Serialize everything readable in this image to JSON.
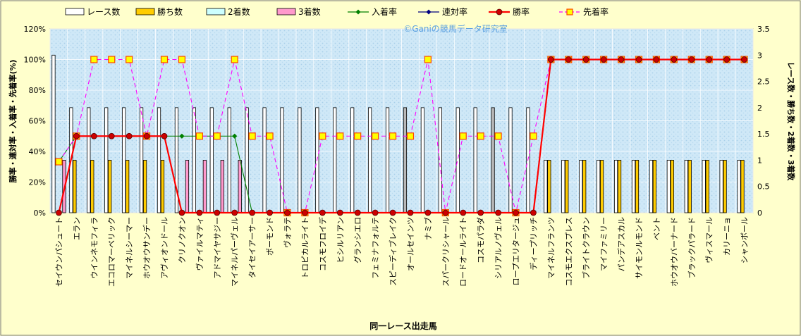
{
  "chart_data": {
    "type": "bar",
    "watermark": "©Ganiの競馬データ研究室",
    "xlabel": "同一レース出走馬",
    "ylabel_left": "勝率・連対率・入着率・先着率(%)",
    "ylabel_right": "レース数・勝ち数・2着数・3着数",
    "y_left_ticks": [
      "0%",
      "20%",
      "40%",
      "60%",
      "80%",
      "100%",
      "120%"
    ],
    "y_right_ticks": [
      "0",
      "0.5",
      "1",
      "1.5",
      "2",
      "2.5",
      "3",
      "3.5"
    ],
    "ylim_left": [
      0,
      120
    ],
    "ylim_right": [
      0,
      3.5
    ],
    "grid": true,
    "legend_position": "top",
    "categories": [
      "セイウンパシュート",
      "エラン",
      "ウインネモフィラ",
      "エコロマーベリック",
      "マイネルシーマー",
      "ホウオウサンデー",
      "アヴィオンドール",
      "クリノクオン",
      "ヴァイルマティ",
      "アドマイヤサジー",
      "マイネルパーヴェル",
      "タイセイアーサー",
      "ボーモンド",
      "ヴォラテ",
      "トロピカルライト",
      "コスモフロイデ",
      "ヒシルリアン",
      "グランシエロ",
      "フェミナフォルテ",
      "スピーディブレイク",
      "オールセインツ",
      "ナミブ",
      "スパークリシャール",
      "ロードオールライト",
      "コスモパラダ",
      "シリアルノヴェル",
      "ロープエリタージュ",
      "ディープリッチ",
      "マイネルフランツ",
      "コスモエクスプレス",
      "ブライトクラウン",
      "マイファミリー",
      "パンデアスカル",
      "サイモンルモンド",
      "ベント",
      "ホウオウバーナード",
      "ブラックパラード",
      "ヴィスマール",
      "カリーニョ",
      "シャンボール"
    ],
    "series": [
      {
        "name": "レース数",
        "type": "bar",
        "axis": "right",
        "color": "#ffffff",
        "values": [
          3,
          2,
          2,
          2,
          2,
          2,
          2,
          2,
          2,
          2,
          2,
          2,
          2,
          2,
          2,
          2,
          2,
          2,
          2,
          2,
          2,
          2,
          2,
          2,
          2,
          2,
          2,
          2,
          1,
          1,
          1,
          1,
          1,
          1,
          1,
          1,
          1,
          1,
          1,
          1
        ]
      },
      {
        "name": "勝ち数",
        "type": "bar",
        "axis": "right",
        "color": "#ffcc00",
        "values": [
          0,
          1,
          1,
          1,
          1,
          1,
          1,
          0,
          0,
          0,
          0,
          0,
          0,
          0,
          0,
          0,
          0,
          0,
          0,
          0,
          0,
          0,
          0,
          0,
          0,
          0,
          0,
          0,
          1,
          1,
          1,
          1,
          1,
          1,
          1,
          1,
          1,
          1,
          1,
          1
        ]
      },
      {
        "name": "2着数",
        "type": "bar",
        "axis": "right",
        "color": "#ccffff",
        "values": [
          0,
          0,
          0,
          0,
          0,
          0,
          0,
          0,
          0,
          0,
          0,
          0,
          0,
          0,
          0,
          0,
          0,
          0,
          0,
          0,
          0,
          0,
          0,
          0,
          0,
          0,
          0,
          0,
          0,
          0,
          0,
          0,
          0,
          0,
          0,
          0,
          0,
          0,
          0,
          0
        ]
      },
      {
        "name": "3着数",
        "type": "bar",
        "axis": "right",
        "color": "#ff99cc",
        "values": [
          1,
          0,
          0,
          0,
          0,
          0,
          0,
          1,
          1,
          1,
          1,
          0,
          0,
          0,
          0,
          0,
          0,
          0,
          0,
          0,
          0,
          0,
          0,
          0,
          0,
          0,
          0,
          0,
          0,
          0,
          0,
          0,
          0,
          0,
          0,
          0,
          0,
          0,
          0,
          0
        ]
      },
      {
        "name": "入着率",
        "type": "line",
        "axis": "left",
        "color": "#008000",
        "marker": "diamond",
        "values": [
          33.3,
          50,
          50,
          50,
          50,
          50,
          50,
          50,
          50,
          50,
          50,
          0,
          0,
          0,
          0,
          0,
          0,
          0,
          0,
          0,
          0,
          0,
          0,
          0,
          0,
          0,
          0,
          0,
          100,
          100,
          100,
          100,
          100,
          100,
          100,
          100,
          100,
          100,
          100,
          100
        ]
      },
      {
        "name": "連対率",
        "type": "line",
        "axis": "left",
        "color": "#000080",
        "marker": "diamond",
        "values": [
          0,
          50,
          50,
          50,
          50,
          50,
          50,
          0,
          0,
          0,
          0,
          0,
          0,
          0,
          0,
          0,
          0,
          0,
          0,
          0,
          0,
          0,
          0,
          0,
          0,
          0,
          0,
          0,
          100,
          100,
          100,
          100,
          100,
          100,
          100,
          100,
          100,
          100,
          100,
          100
        ]
      },
      {
        "name": "勝率",
        "type": "line",
        "axis": "left",
        "color": "#ff0000",
        "marker": "circle",
        "values": [
          0,
          50,
          50,
          50,
          50,
          50,
          50,
          0,
          0,
          0,
          0,
          0,
          0,
          0,
          0,
          0,
          0,
          0,
          0,
          0,
          0,
          0,
          0,
          0,
          0,
          0,
          0,
          0,
          100,
          100,
          100,
          100,
          100,
          100,
          100,
          100,
          100,
          100,
          100,
          100
        ]
      },
      {
        "name": "先着率",
        "type": "line",
        "axis": "left",
        "color": "#ff00ff",
        "marker": "square",
        "dash": true,
        "values": [
          33.3,
          50,
          100,
          100,
          100,
          50,
          100,
          100,
          50,
          50,
          100,
          50,
          50,
          0,
          0,
          50,
          50,
          50,
          50,
          50,
          50,
          100,
          0,
          50,
          50,
          50,
          0,
          50,
          100,
          100,
          100,
          100,
          100,
          100,
          100,
          100,
          100,
          100,
          100,
          100
        ]
      }
    ]
  }
}
